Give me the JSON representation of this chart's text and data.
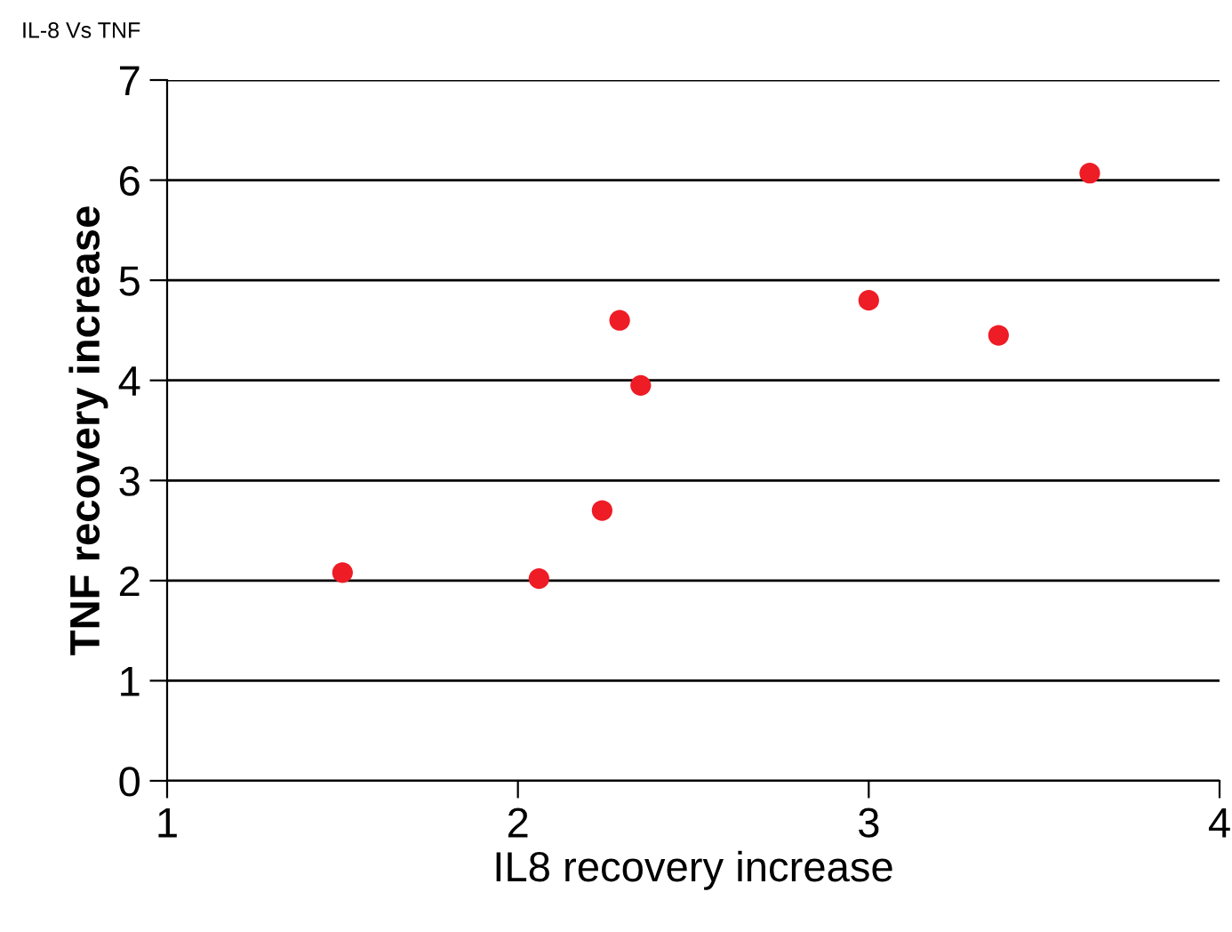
{
  "chart_data": {
    "type": "scatter",
    "subtitle": "IL-8 Vs TNF",
    "xlabel": "IL8 recovery increase",
    "ylabel": "TNF recovery increase",
    "series": [
      {
        "color": "#ee1c25",
        "x": [
          1.5,
          2.06,
          2.24,
          2.29,
          2.35,
          3.0,
          3.37,
          3.63
        ],
        "values": [
          2.08,
          2.02,
          2.7,
          4.6,
          3.95,
          4.8,
          4.45,
          6.07
        ]
      }
    ],
    "xlim": [
      1,
      4
    ],
    "xticks": [
      1,
      2,
      3,
      4
    ],
    "ylim": [
      0,
      7
    ],
    "yticks": [
      0,
      1,
      2,
      3,
      4,
      5,
      6,
      7
    ],
    "grid": "y",
    "marker": "circle"
  }
}
